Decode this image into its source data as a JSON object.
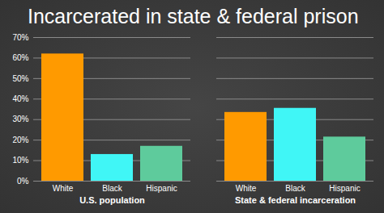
{
  "chart_data": {
    "type": "bar",
    "title": "Incarcerated in state & federal prison",
    "categories": [
      "White",
      "Black",
      "Hispanic"
    ],
    "colors": [
      "#ff9a00",
      "#40f6f6",
      "#5ecb9c"
    ],
    "series": [
      {
        "name": "U.S. population",
        "values": [
          62,
          13,
          17
        ]
      },
      {
        "name": "State & federal incarceration",
        "values": [
          33.5,
          35.5,
          21.5
        ]
      }
    ],
    "ylim": [
      0,
      70
    ],
    "yticks": [
      {
        "value": 0,
        "label": "0%"
      },
      {
        "value": 10,
        "label": "10%"
      },
      {
        "value": 20,
        "label": "20%"
      },
      {
        "value": 30,
        "label": "30%"
      },
      {
        "value": 40,
        "label": "40%"
      },
      {
        "value": 50,
        "label": "50%"
      },
      {
        "value": 60,
        "label": "60%"
      },
      {
        "value": 70,
        "label": "70%"
      }
    ],
    "grid": true
  }
}
